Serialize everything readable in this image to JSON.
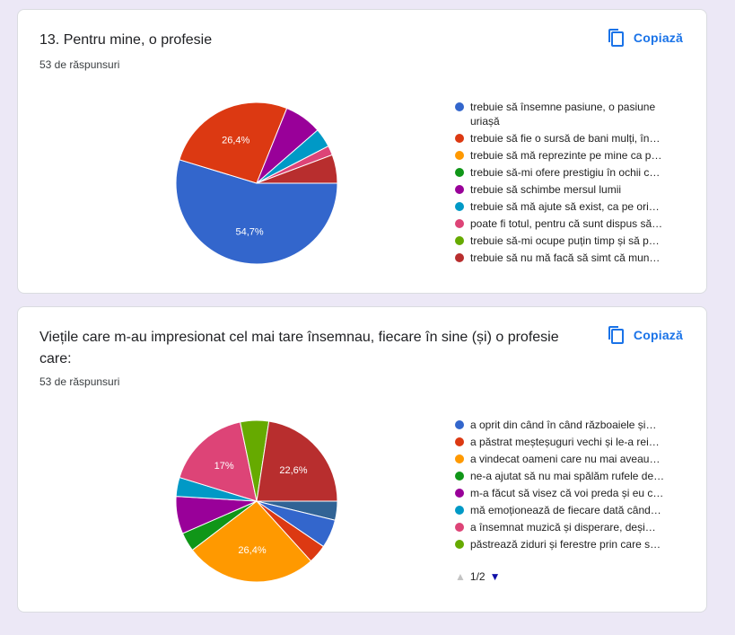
{
  "cards": [
    {
      "title": "13. Pentru mine, o profesie",
      "count": "53 de răspunsuri",
      "copy_label": "Copiază",
      "legend": [
        {
          "label": "trebuie să însemne pasiune, o pasiune uriașă",
          "color": "#3366cc"
        },
        {
          "label": "trebuie să fie o sursă de bani mulți, în…",
          "color": "#dc3912"
        },
        {
          "label": "trebuie să mă reprezinte pe mine ca p…",
          "color": "#ff9900"
        },
        {
          "label": "trebuie să-mi ofere prestigiu în ochii c…",
          "color": "#109618"
        },
        {
          "label": "trebuie să schimbe mersul lumii",
          "color": "#990099"
        },
        {
          "label": "trebuie să mă ajute să exist, ca pe ori…",
          "color": "#0099c6"
        },
        {
          "label": "poate fi totul, pentru că sunt dispus să…",
          "color": "#dd4477"
        },
        {
          "label": "trebuie să-mi ocupe puțin timp și să p…",
          "color": "#66aa00"
        },
        {
          "label": "trebuie să nu mă facă să simt că mun…",
          "color": "#b82e2e"
        }
      ]
    },
    {
      "title": "Viețile care m-au impresionat cel mai tare însemnau, fiecare în sine (și) o profesie care:",
      "count": "53 de răspunsuri",
      "copy_label": "Copiază",
      "legend": [
        {
          "label": "a oprit din când în când războaiele și…",
          "color": "#3366cc"
        },
        {
          "label": "a păstrat meșteșuguri vechi și le-a rei…",
          "color": "#dc3912"
        },
        {
          "label": "a vindecat oameni care nu mai aveau…",
          "color": "#ff9900"
        },
        {
          "label": "ne-a ajutat să nu mai spălăm rufele de…",
          "color": "#109618"
        },
        {
          "label": "m-a făcut să visez că voi preda și eu c…",
          "color": "#990099"
        },
        {
          "label": "mă emoționează de fiecare dată când…",
          "color": "#0099c6"
        },
        {
          "label": "a însemnat muzică și disperare, deși…",
          "color": "#dd4477"
        },
        {
          "label": "păstrează ziduri și ferestre prin care s…",
          "color": "#66aa00"
        }
      ],
      "pager": {
        "text": "1/2"
      }
    }
  ],
  "chart_data": [
    {
      "type": "pie",
      "slices": [
        {
          "value": 54.7,
          "color": "#3366cc",
          "label": "54,7%"
        },
        {
          "value": 26.4,
          "color": "#dc3912",
          "label": "26,4%"
        },
        {
          "value": 7.5,
          "color": "#990099",
          "label": ""
        },
        {
          "value": 3.8,
          "color": "#0099c6",
          "label": ""
        },
        {
          "value": 1.9,
          "color": "#dd4477",
          "label": ""
        },
        {
          "value": 5.7,
          "color": "#b82e2e",
          "label": ""
        }
      ]
    },
    {
      "type": "pie",
      "slices": [
        {
          "value": 3.8,
          "color": "#316395",
          "label": ""
        },
        {
          "value": 5.7,
          "color": "#3366cc",
          "label": ""
        },
        {
          "value": 3.8,
          "color": "#dc3912",
          "label": ""
        },
        {
          "value": 26.4,
          "color": "#ff9900",
          "label": "26,4%"
        },
        {
          "value": 3.8,
          "color": "#109618",
          "label": ""
        },
        {
          "value": 7.5,
          "color": "#990099",
          "label": ""
        },
        {
          "value": 3.8,
          "color": "#0099c6",
          "label": ""
        },
        {
          "value": 17.0,
          "color": "#dd4477",
          "label": "17%"
        },
        {
          "value": 5.7,
          "color": "#66aa00",
          "label": ""
        },
        {
          "value": 22.6,
          "color": "#b82e2e",
          "label": "22,6%"
        }
      ]
    }
  ]
}
